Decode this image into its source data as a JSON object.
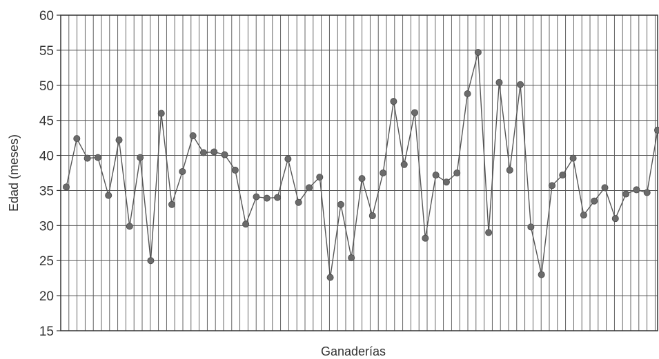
{
  "chart_data": {
    "type": "line",
    "title": "",
    "xlabel": "Ganaderías",
    "ylabel": "Edad (meses)",
    "ylim": [
      15,
      60
    ],
    "yticks": [
      15,
      20,
      25,
      30,
      35,
      40,
      45,
      50,
      55,
      60
    ],
    "grid": true,
    "series": [
      {
        "values": [
          35.5,
          42.4,
          39.6,
          39.7,
          34.3,
          42.2,
          29.9,
          39.7,
          25.0,
          46.0,
          33.0,
          37.7,
          42.8,
          40.4,
          40.5,
          40.1,
          37.9,
          30.2,
          34.1,
          33.9,
          34.0,
          39.5,
          33.3,
          35.4,
          36.9,
          22.6,
          33.0,
          25.4,
          36.7,
          31.4,
          37.5,
          47.7,
          38.7,
          46.1,
          28.2,
          37.2,
          36.2,
          37.5,
          48.8,
          54.7,
          29.0,
          50.4,
          37.9,
          50.1,
          29.8,
          23.0,
          35.7,
          37.2,
          39.6,
          31.5,
          33.5,
          35.4,
          31.0,
          34.5,
          35.1,
          34.7,
          43.6
        ]
      }
    ]
  },
  "colors": {
    "line": "#555555",
    "marker": "#6b6b6b",
    "grid": "#555555",
    "frame": "#333333"
  }
}
